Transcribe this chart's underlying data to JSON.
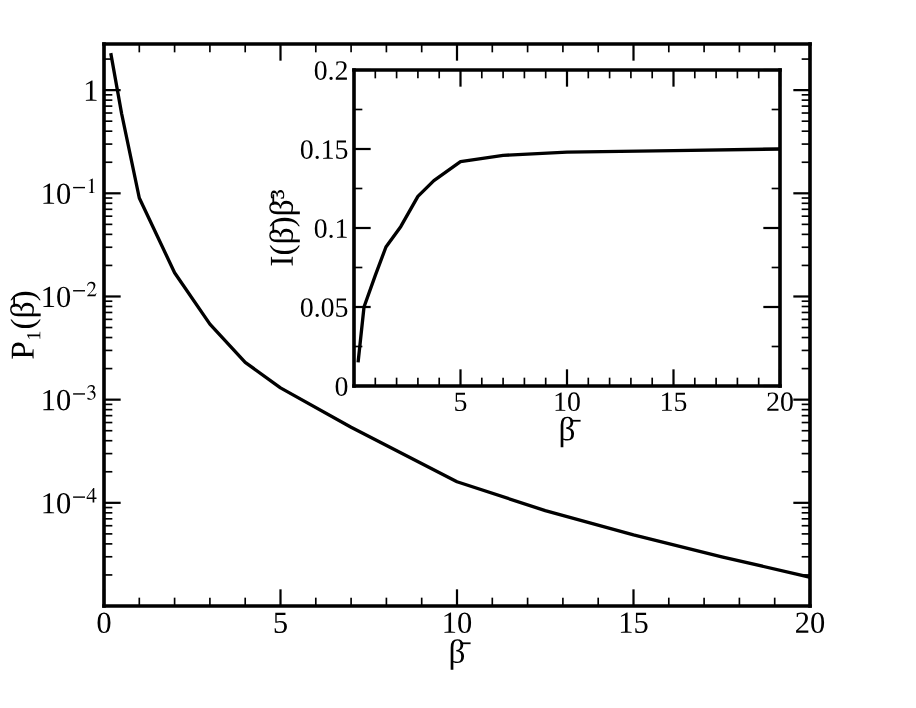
{
  "chart_data": [
    {
      "type": "line",
      "xlabel": "β̄",
      "ylabel": "P₁(β̄)",
      "log": "y",
      "marker": "none",
      "line_style": "solid",
      "grid": false,
      "legend": false,
      "xlim": [
        0,
        20
      ],
      "ylim": [
        1e-05,
        2.8
      ],
      "xticks": [
        0,
        5,
        10,
        15,
        20
      ],
      "yticks": [
        {
          "value": 1,
          "label": "1"
        },
        {
          "value": 0.1,
          "label": "10$^{−1}$"
        },
        {
          "value": 0.01,
          "label": "10$^{−2}$"
        },
        {
          "value": 0.001,
          "label": "10$^{−3}$"
        },
        {
          "value": 0.0001,
          "label": "10$^{−4}$"
        }
      ],
      "series": [
        {
          "color": "#000000",
          "x": [
            0.2,
            0.5,
            1,
            2,
            3,
            4,
            5,
            7,
            10,
            12.5,
            15,
            17.5,
            20
          ],
          "values": [
            2.2,
            0.59,
            0.09,
            0.017,
            0.0054,
            0.0023,
            0.0013,
            0.00054,
            0.00016,
            8.4e-05,
            4.9e-05,
            3e-05,
            1.9e-05
          ]
        }
      ]
    },
    {
      "type": "line",
      "xlabel": "β̄",
      "ylabel": "I(β̄)β̄³",
      "marker": "none",
      "line_style": "solid",
      "grid": false,
      "legend": false,
      "xlim": [
        0,
        20
      ],
      "ylim": [
        0,
        0.2
      ],
      "xticks": [
        5,
        10,
        15,
        20
      ],
      "yticks": [
        0,
        0.05,
        0.1,
        0.15,
        0.2
      ],
      "series": [
        {
          "color": "#000000",
          "x": [
            0.2,
            0.47,
            1,
            1.5,
            2.2,
            3,
            3.75,
            5,
            7,
            10,
            15,
            20
          ],
          "values": [
            0.016,
            0.05,
            0.07,
            0.088,
            0.101,
            0.12,
            0.13,
            0.142,
            0.146,
            0.148,
            0.149,
            0.15
          ]
        }
      ]
    }
  ]
}
